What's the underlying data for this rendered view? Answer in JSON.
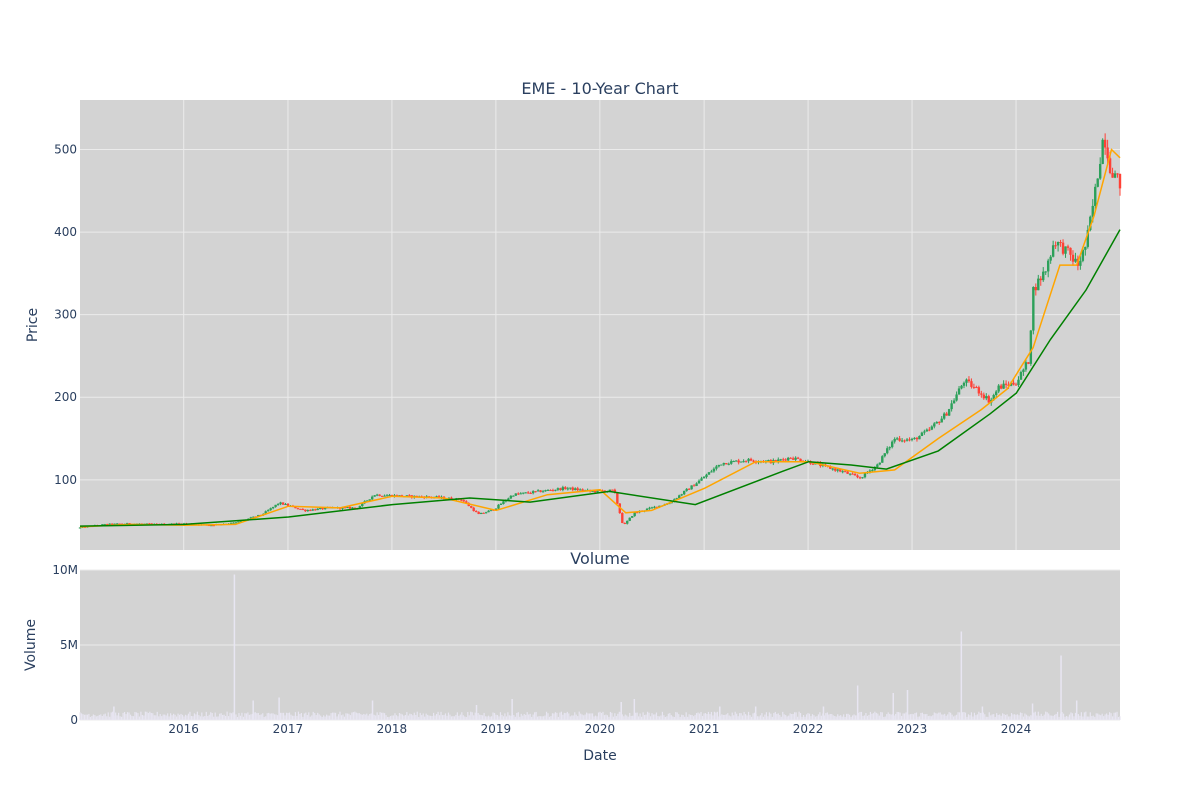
{
  "chart_data": [
    {
      "type": "line",
      "title": "EME - 10-Year Chart",
      "ylabel": "Price",
      "ylim": [
        15,
        560
      ],
      "y_ticks": [
        100,
        200,
        300,
        400,
        500
      ],
      "x_ticks": [
        "2016",
        "2017",
        "2018",
        "2019",
        "2020",
        "2021",
        "2022",
        "2023",
        "2024"
      ],
      "grid": true,
      "colors": {
        "background": "#d3d3d3",
        "grid": "#ebebeb",
        "candle_up": "#2ca05a",
        "candle_down": "#ff4136",
        "ma_short": "#ffa500",
        "ma_long": "#008000"
      },
      "series": [
        {
          "style": "candlestick",
          "x": [
            "2015-01-02",
            "2015-04-01",
            "2015-07-01",
            "2015-10-01",
            "2016-01-04",
            "2016-04-01",
            "2016-07-01",
            "2016-10-03",
            "2016-12-01",
            "2017-03-01",
            "2017-06-01",
            "2017-09-01",
            "2017-11-01",
            "2018-03-01",
            "2018-06-01",
            "2018-09-04",
            "2018-11-01",
            "2018-12-24",
            "2019-03-01",
            "2019-06-03",
            "2019-09-03",
            "2019-12-02",
            "2020-02-20",
            "2020-03-23",
            "2020-05-01",
            "2020-07-01",
            "2020-09-01",
            "2020-11-02",
            "2020-12-01",
            "2021-03-01",
            "2021-06-01",
            "2021-09-01",
            "2021-11-01",
            "2022-01-03",
            "2022-03-01",
            "2022-05-02",
            "2022-07-01",
            "2022-09-01",
            "2022-11-01",
            "2023-01-03",
            "2023-03-01",
            "2023-05-01",
            "2023-07-03",
            "2023-08-15",
            "2023-10-02",
            "2023-11-01",
            "2024-01-02",
            "2024-02-15",
            "2024-03-01",
            "2024-04-15",
            "2024-05-15",
            "2024-07-01",
            "2024-08-05",
            "2024-09-03",
            "2024-10-01",
            "2024-11-04",
            "2024-11-25",
            "2024-12-31"
          ],
          "values": [
            42,
            46,
            47,
            46,
            47,
            45,
            48,
            58,
            72,
            63,
            66,
            66,
            82,
            80,
            79,
            76,
            58,
            64,
            82,
            86,
            90,
            86,
            87,
            44,
            60,
            66,
            72,
            88,
            95,
            120,
            124,
            122,
            127,
            122,
            116,
            110,
            102,
            118,
            150,
            148,
            160,
            180,
            220,
            210,
            195,
            212,
            218,
            245,
            330,
            355,
            390,
            375,
            360,
            385,
            440,
            520,
            480,
            458
          ]
        },
        {
          "name": "",
          "style": "line",
          "color": "#ffa500",
          "x": [
            "2015-01-02",
            "2015-07-01",
            "2016-01-04",
            "2016-07-01",
            "2017-01-03",
            "2017-07-03",
            "2018-01-02",
            "2018-07-02",
            "2019-01-02",
            "2019-07-01",
            "2020-01-02",
            "2020-04-01",
            "2020-07-01",
            "2021-01-04",
            "2021-07-01",
            "2022-01-03",
            "2022-07-01",
            "2022-11-01",
            "2023-04-03",
            "2023-09-01",
            "2023-12-01",
            "2024-03-01",
            "2024-06-03",
            "2024-08-01",
            "2024-10-01",
            "2024-12-01",
            "2024-12-31"
          ],
          "values": [
            43,
            46,
            45,
            46,
            68,
            66,
            80,
            78,
            63,
            82,
            88,
            60,
            63,
            90,
            122,
            122,
            108,
            112,
            150,
            185,
            210,
            260,
            360,
            360,
            420,
            500,
            490
          ]
        },
        {
          "name": "",
          "style": "line",
          "color": "#008000",
          "x": [
            "2015-01-02",
            "2016-01-04",
            "2017-01-03",
            "2018-01-02",
            "2018-10-01",
            "2019-05-01",
            "2020-02-03",
            "2020-12-01",
            "2021-10-01",
            "2022-01-03",
            "2022-06-01",
            "2022-10-03",
            "2023-04-03",
            "2023-10-02",
            "2024-01-02",
            "2024-05-01",
            "2024-09-03",
            "2024-12-31"
          ],
          "values": [
            44,
            46,
            55,
            70,
            78,
            73,
            86,
            70,
            110,
            122,
            118,
            113,
            135,
            180,
            205,
            270,
            330,
            403
          ]
        }
      ]
    },
    {
      "type": "bar",
      "title": "Volume",
      "xlabel": "Date",
      "ylabel": "Volume",
      "ylim": [
        0,
        10000000
      ],
      "y_ticks": [
        0,
        5000000,
        10000000
      ],
      "y_tick_labels": [
        "0",
        "5M",
        "10M"
      ],
      "x_ticks": [
        "2016",
        "2017",
        "2018",
        "2019",
        "2020",
        "2021",
        "2022",
        "2023",
        "2024"
      ],
      "grid": true,
      "colors": {
        "background": "#d3d3d3",
        "bars": "#e8e6f2",
        "grid": "#ebebeb"
      },
      "baseline": 400000,
      "spikes": [
        {
          "date": "2015-05-01",
          "value": 900000
        },
        {
          "date": "2016-06-27",
          "value": 9700000
        },
        {
          "date": "2016-09-01",
          "value": 1300000
        },
        {
          "date": "2016-12-01",
          "value": 1500000
        },
        {
          "date": "2017-10-25",
          "value": 1300000
        },
        {
          "date": "2018-10-25",
          "value": 1000000
        },
        {
          "date": "2019-02-27",
          "value": 1400000
        },
        {
          "date": "2020-03-16",
          "value": 1200000
        },
        {
          "date": "2020-05-01",
          "value": 1400000
        },
        {
          "date": "2021-02-25",
          "value": 900000
        },
        {
          "date": "2021-07-01",
          "value": 900000
        },
        {
          "date": "2022-02-24",
          "value": 900000
        },
        {
          "date": "2022-06-24",
          "value": 2300000
        },
        {
          "date": "2022-10-27",
          "value": 1800000
        },
        {
          "date": "2022-12-16",
          "value": 2000000
        },
        {
          "date": "2023-06-23",
          "value": 5900000
        },
        {
          "date": "2023-09-05",
          "value": 900000
        },
        {
          "date": "2024-02-28",
          "value": 1100000
        },
        {
          "date": "2024-06-07",
          "value": 4300000
        },
        {
          "date": "2024-08-01",
          "value": 1300000
        }
      ]
    }
  ]
}
